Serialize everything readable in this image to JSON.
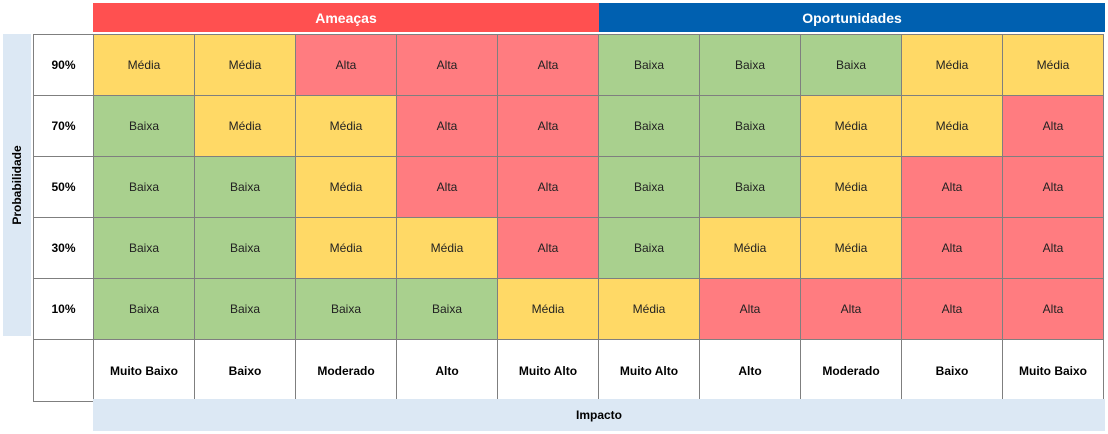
{
  "chart_data": {
    "type": "heatmap",
    "sections": [
      {
        "name": "Ameaças",
        "color": "#ff5050"
      },
      {
        "name": "Oportunidades",
        "color": "#0060b0"
      }
    ],
    "ylabel": "Probabilidade",
    "xlabel": "Impacto",
    "probabilities": [
      "90%",
      "70%",
      "50%",
      "30%",
      "10%"
    ],
    "impacts": [
      "Muito Baixo",
      "Baixo",
      "Moderado",
      "Alto",
      "Muito Alto",
      "Muito Alto",
      "Alto",
      "Moderado",
      "Baixo",
      "Muito Baixo"
    ],
    "levels": {
      "baixa": {
        "label": "Baixa",
        "color": "#a9d08e"
      },
      "media": {
        "label": "Média",
        "color": "#ffd966"
      },
      "alta": {
        "label": "Alta",
        "color": "#ff7c80"
      }
    },
    "matrix": [
      [
        "Média",
        "Média",
        "Alta",
        "Alta",
        "Alta",
        "Baixa",
        "Baixa",
        "Baixa",
        "Média",
        "Média"
      ],
      [
        "Baixa",
        "Média",
        "Média",
        "Alta",
        "Alta",
        "Baixa",
        "Baixa",
        "Média",
        "Média",
        "Alta"
      ],
      [
        "Baixa",
        "Baixa",
        "Média",
        "Alta",
        "Alta",
        "Baixa",
        "Baixa",
        "Média",
        "Alta",
        "Alta"
      ],
      [
        "Baixa",
        "Baixa",
        "Média",
        "Média",
        "Alta",
        "Baixa",
        "Média",
        "Média",
        "Alta",
        "Alta"
      ],
      [
        "Baixa",
        "Baixa",
        "Baixa",
        "Baixa",
        "Média",
        "Média",
        "Alta",
        "Alta",
        "Alta",
        "Alta"
      ]
    ]
  }
}
